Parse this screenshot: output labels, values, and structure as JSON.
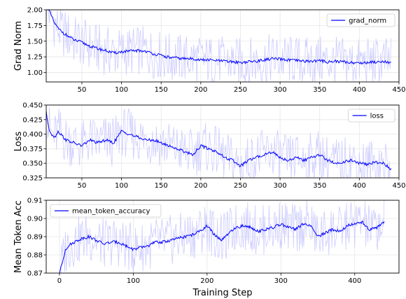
{
  "figure": {
    "xlabel": "Training Step"
  },
  "colors": {
    "line": "#0000ff",
    "raw": "#ccccff",
    "grid": "#e6e6e6",
    "axis": "#000000"
  },
  "chart_data": [
    {
      "type": "line",
      "id": "grad_norm",
      "ylabel": "Grad Norm",
      "xlim": [
        5,
        450
      ],
      "ylim": [
        0.85,
        2.0
      ],
      "xticks": [
        50,
        100,
        150,
        200,
        250,
        300,
        350,
        400,
        450
      ],
      "yticks": [
        1.0,
        1.25,
        1.5,
        1.75,
        2.0
      ],
      "ytick_labels": [
        "1.00",
        "1.25",
        "1.50",
        "1.75",
        "2.00"
      ],
      "legend": {
        "position": "top-right"
      },
      "grid": true,
      "series": [
        {
          "name": "grad_norm",
          "style": "smoothed",
          "x": [
            5,
            10,
            15,
            20,
            25,
            30,
            40,
            50,
            60,
            70,
            80,
            90,
            100,
            110,
            120,
            130,
            140,
            150,
            160,
            170,
            180,
            190,
            200,
            210,
            220,
            230,
            240,
            250,
            260,
            270,
            280,
            290,
            300,
            310,
            320,
            330,
            340,
            350,
            360,
            370,
            380,
            390,
            400,
            410,
            420,
            430,
            440
          ],
          "y": [
            2.05,
            1.95,
            1.8,
            1.7,
            1.65,
            1.6,
            1.52,
            1.48,
            1.42,
            1.38,
            1.35,
            1.31,
            1.33,
            1.34,
            1.35,
            1.34,
            1.3,
            1.27,
            1.24,
            1.23,
            1.22,
            1.22,
            1.2,
            1.2,
            1.19,
            1.18,
            1.17,
            1.16,
            1.17,
            1.18,
            1.2,
            1.22,
            1.21,
            1.2,
            1.19,
            1.18,
            1.18,
            1.19,
            1.17,
            1.18,
            1.17,
            1.16,
            1.15,
            1.16,
            1.17,
            1.18,
            1.16
          ]
        }
      ]
    },
    {
      "type": "line",
      "id": "loss",
      "ylabel": "Loss",
      "xlim": [
        5,
        450
      ],
      "ylim": [
        0.325,
        0.45
      ],
      "xticks": [
        50,
        100,
        150,
        200,
        250,
        300,
        350,
        400,
        450
      ],
      "yticks": [
        0.325,
        0.35,
        0.375,
        0.4,
        0.425,
        0.45
      ],
      "ytick_labels": [
        "0.325",
        "0.350",
        "0.375",
        "0.400",
        "0.425",
        "0.450"
      ],
      "legend": {
        "position": "top-right"
      },
      "grid": true,
      "series": [
        {
          "name": "loss",
          "style": "smoothed",
          "x": [
            5,
            8,
            12,
            16,
            20,
            30,
            40,
            50,
            60,
            70,
            80,
            90,
            100,
            110,
            120,
            130,
            140,
            150,
            160,
            170,
            180,
            190,
            200,
            210,
            220,
            230,
            240,
            250,
            260,
            270,
            280,
            290,
            300,
            310,
            320,
            330,
            340,
            350,
            360,
            370,
            380,
            390,
            400,
            410,
            420,
            430,
            440
          ],
          "y": [
            0.44,
            0.41,
            0.4,
            0.395,
            0.405,
            0.39,
            0.385,
            0.38,
            0.39,
            0.385,
            0.39,
            0.385,
            0.405,
            0.4,
            0.395,
            0.39,
            0.39,
            0.385,
            0.38,
            0.375,
            0.37,
            0.365,
            0.38,
            0.375,
            0.37,
            0.36,
            0.355,
            0.345,
            0.355,
            0.36,
            0.365,
            0.37,
            0.36,
            0.355,
            0.36,
            0.355,
            0.36,
            0.365,
            0.355,
            0.35,
            0.352,
            0.355,
            0.35,
            0.348,
            0.352,
            0.35,
            0.34
          ]
        }
      ]
    },
    {
      "type": "line",
      "id": "mean_token_accuracy",
      "ylabel": "Mean Token Acc",
      "xlabel": "Training Step",
      "xlim": [
        -18,
        460
      ],
      "ylim": [
        0.87,
        0.91
      ],
      "xticks": [
        0,
        100,
        200,
        300,
        400
      ],
      "yticks": [
        0.87,
        0.88,
        0.89,
        0.9,
        0.91
      ],
      "ytick_labels": [
        "0.87",
        "0.88",
        "0.89",
        "0.90",
        "0.91"
      ],
      "legend": {
        "position": "top-left"
      },
      "grid": true,
      "series": [
        {
          "name": "mean_token_accuracy",
          "style": "smoothed",
          "x": [
            0,
            4,
            8,
            12,
            16,
            20,
            30,
            40,
            50,
            60,
            70,
            80,
            90,
            100,
            110,
            120,
            130,
            140,
            150,
            160,
            170,
            180,
            190,
            200,
            210,
            220,
            230,
            240,
            250,
            260,
            270,
            280,
            290,
            300,
            310,
            320,
            330,
            340,
            350,
            360,
            370,
            380,
            390,
            400,
            410,
            420,
            430,
            440
          ],
          "y": [
            0.87,
            0.876,
            0.883,
            0.885,
            0.886,
            0.887,
            0.889,
            0.89,
            0.888,
            0.886,
            0.887,
            0.887,
            0.885,
            0.883,
            0.884,
            0.885,
            0.887,
            0.887,
            0.888,
            0.889,
            0.89,
            0.891,
            0.893,
            0.896,
            0.891,
            0.888,
            0.892,
            0.895,
            0.896,
            0.895,
            0.893,
            0.894,
            0.895,
            0.897,
            0.895,
            0.894,
            0.897,
            0.896,
            0.89,
            0.892,
            0.894,
            0.893,
            0.896,
            0.897,
            0.898,
            0.894,
            0.895,
            0.898
          ]
        }
      ]
    }
  ]
}
